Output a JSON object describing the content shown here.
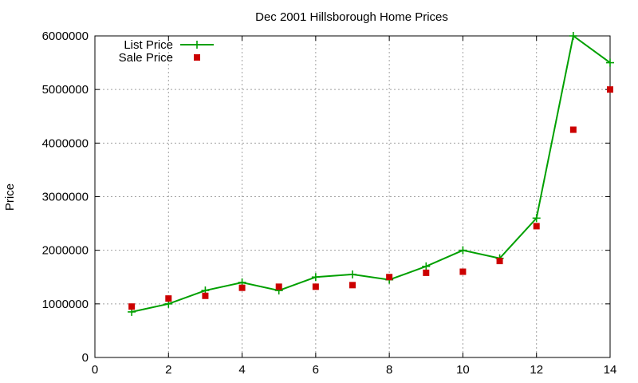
{
  "chart_data": {
    "type": "line",
    "title": "Dec 2001 Hillsborough Home Prices",
    "xlabel": "",
    "ylabel": "Price",
    "xlim": [
      0,
      14
    ],
    "ylim": [
      0,
      6000000
    ],
    "x_ticks": [
      "0",
      "2",
      "4",
      "6",
      "8",
      "10",
      "12",
      "14"
    ],
    "y_ticks": [
      "0",
      "1000000",
      "2000000",
      "3000000",
      "4000000",
      "5000000",
      "6000000"
    ],
    "grid": true,
    "legend_position": "top-left",
    "x": [
      1,
      2,
      3,
      4,
      5,
      6,
      7,
      8,
      9,
      10,
      11,
      12,
      13,
      14
    ],
    "series": [
      {
        "name": "List Price",
        "style": "line-plus",
        "color": "#00a000",
        "values": [
          850000,
          1000000,
          1250000,
          1400000,
          1250000,
          1500000,
          1550000,
          1450000,
          1700000,
          2000000,
          1850000,
          2600000,
          6000000,
          5500000
        ]
      },
      {
        "name": "Sale Price",
        "style": "square-points",
        "color": "#cc0000",
        "values": [
          950000,
          1100000,
          1150000,
          1300000,
          1320000,
          1320000,
          1350000,
          1500000,
          1580000,
          1600000,
          1800000,
          2450000,
          4250000,
          5000000
        ]
      }
    ]
  }
}
